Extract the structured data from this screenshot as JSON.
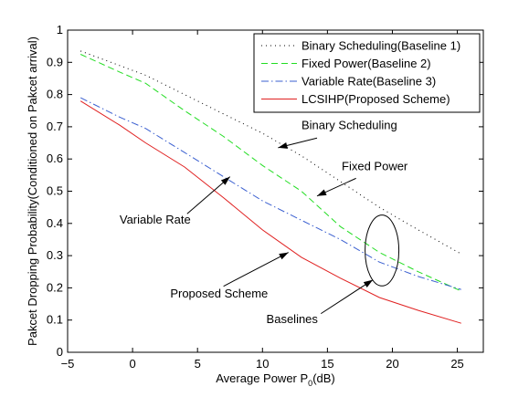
{
  "chart_data": {
    "type": "line",
    "title": "",
    "xlabel_prefix": "Average Power P",
    "xlabel_sub": "0",
    "xlabel_suffix": "(dB)",
    "ylabel": "Pakcet Dropping Probability(Conditioned on Pakcet arrival)",
    "xlim": [
      -5,
      27
    ],
    "ylim": [
      0,
      1
    ],
    "xticks": [
      -5,
      0,
      5,
      10,
      15,
      20,
      25
    ],
    "yticks": [
      0,
      0.1,
      0.2,
      0.3,
      0.4,
      0.5,
      0.6,
      0.7,
      0.8,
      0.9,
      1
    ],
    "grid": false,
    "legend_position": "top-right",
    "series": [
      {
        "name": "Binary Scheduling(Baseline 1)",
        "color": "#000000",
        "dash": "dotted",
        "x": [
          -4,
          -1,
          1,
          4,
          7,
          10,
          13,
          16,
          19,
          22,
          25.3
        ],
        "y": [
          0.935,
          0.89,
          0.86,
          0.8,
          0.74,
          0.68,
          0.61,
          0.53,
          0.45,
          0.38,
          0.305
        ]
      },
      {
        "name": "Fixed Power(Baseline 2)",
        "color": "#22dd22",
        "dash": "dashed",
        "x": [
          -4,
          -1,
          1,
          4,
          7,
          10,
          13,
          16,
          19,
          22,
          25.3
        ],
        "y": [
          0.925,
          0.87,
          0.835,
          0.75,
          0.67,
          0.58,
          0.5,
          0.39,
          0.31,
          0.25,
          0.19
        ]
      },
      {
        "name": "Variable Rate(Baseline 3)",
        "color": "#3a5fd0",
        "dash": "dashdot",
        "x": [
          -4,
          -1,
          1,
          4,
          7,
          10,
          13,
          16,
          19,
          22,
          25.3
        ],
        "y": [
          0.79,
          0.73,
          0.695,
          0.62,
          0.545,
          0.47,
          0.41,
          0.35,
          0.28,
          0.235,
          0.195
        ]
      },
      {
        "name": "LCSIHP(Proposed Scheme)",
        "color": "#e02020",
        "dash": "solid",
        "x": [
          -4,
          -1,
          1,
          4,
          7,
          10,
          13,
          16,
          19,
          22,
          25.3
        ],
        "y": [
          0.78,
          0.705,
          0.65,
          0.575,
          0.48,
          0.38,
          0.295,
          0.23,
          0.17,
          0.13,
          0.09
        ]
      }
    ],
    "annotations": [
      {
        "id": "binary",
        "text": "Binary Scheduling",
        "text_x": 13.0,
        "text_y": 0.692,
        "anchor": "start",
        "arrow_from": [
          14.2,
          0.665
        ],
        "arrow_to": [
          11.2,
          0.635
        ]
      },
      {
        "id": "fixed",
        "text": "Fixed Power",
        "text_x": 16.1,
        "text_y": 0.565,
        "anchor": "start",
        "arrow_from": [
          17.2,
          0.54
        ],
        "arrow_to": [
          14.2,
          0.485
        ]
      },
      {
        "id": "variable",
        "text": "Variable Rate",
        "text_x": -1.0,
        "text_y": 0.4,
        "anchor": "start",
        "arrow_from": [
          4.2,
          0.43
        ],
        "arrow_to": [
          7.5,
          0.545
        ]
      },
      {
        "id": "proposed",
        "text": "Proposed Scheme",
        "text_x": 2.9,
        "text_y": 0.17,
        "anchor": "start",
        "arrow_from": [
          7.0,
          0.205
        ],
        "arrow_to": [
          12.0,
          0.31
        ]
      },
      {
        "id": "baselines",
        "text": "Baselines",
        "text_x": 10.3,
        "text_y": 0.09,
        "anchor": "start",
        "arrow_from": [
          14.5,
          0.12
        ],
        "arrow_to": [
          18.5,
          0.225
        ]
      }
    ],
    "ellipse": {
      "cx": 19.2,
      "cy": 0.316,
      "rx": 1.3,
      "ry": 0.11
    }
  }
}
